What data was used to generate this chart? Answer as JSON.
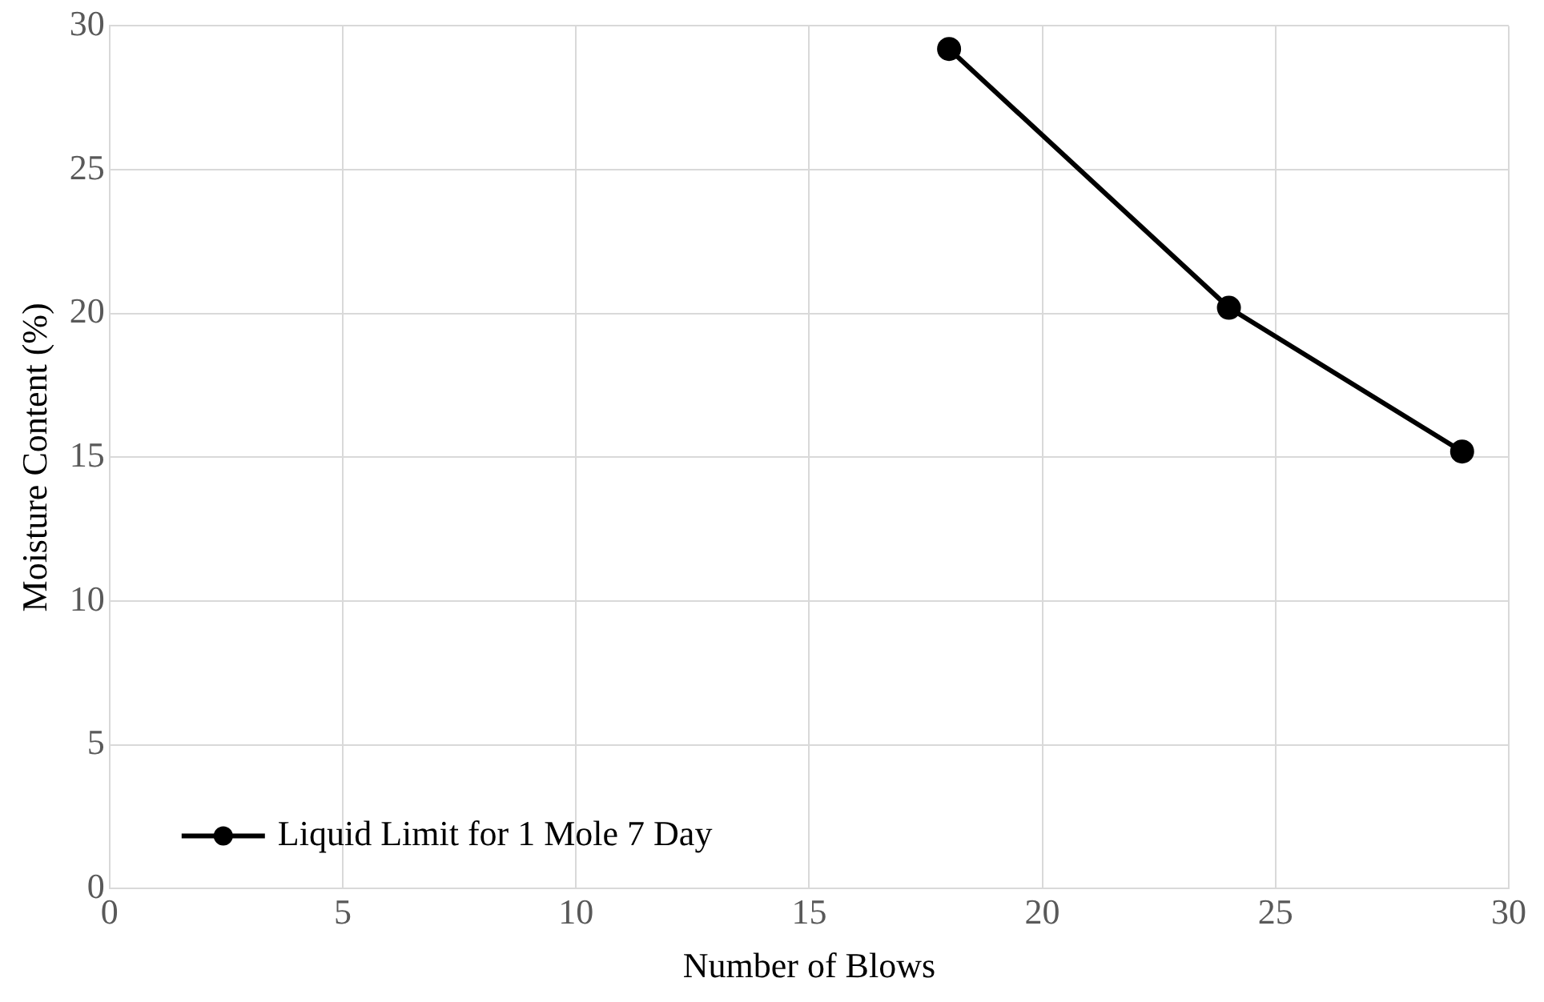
{
  "chart_data": {
    "type": "line",
    "xlabel": "Number of Blows",
    "ylabel": "Moisture Content (%)",
    "x": [
      18,
      24,
      29
    ],
    "series": [
      {
        "name": "Liquid Limit for 1 Mole 7 Day",
        "color": "#000000",
        "values": [
          29.2,
          20.2,
          15.2
        ]
      }
    ],
    "xlim": [
      0,
      30
    ],
    "xticks": [
      0,
      5,
      10,
      15,
      20,
      25,
      30
    ],
    "ylim": [
      0,
      30
    ],
    "yticks": [
      0,
      5,
      10,
      15,
      20,
      25,
      30
    ],
    "grid": true,
    "legend": "bottom left",
    "marker": "circle",
    "line_style": "solid"
  }
}
